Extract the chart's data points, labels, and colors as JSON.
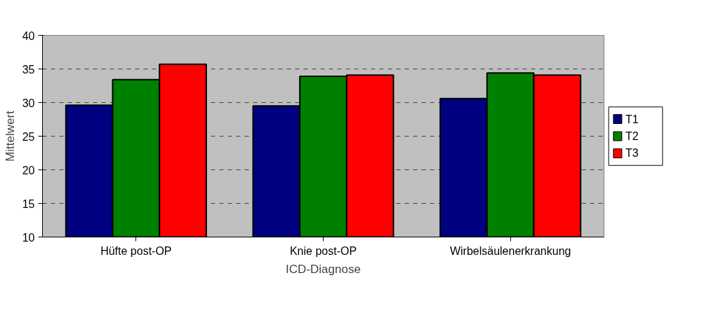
{
  "chart_data": {
    "type": "bar",
    "xlabel": "ICD-Diagnose",
    "ylabel": "Mittelwert",
    "categories": [
      "Hüfte post-OP",
      "Knie post-OP",
      "Wirbelsäulenerkrankung"
    ],
    "series": [
      {
        "name": "T1",
        "color": "#000080",
        "values": [
          29.6,
          29.5,
          30.6
        ]
      },
      {
        "name": "T2",
        "color": "#008000",
        "values": [
          33.4,
          33.9,
          34.4
        ]
      },
      {
        "name": "T3",
        "color": "#ff0000",
        "values": [
          35.7,
          34.1,
          34.1
        ]
      }
    ],
    "ylim": [
      10,
      40
    ],
    "yticks": [
      10,
      15,
      20,
      25,
      30,
      35,
      40
    ],
    "grid": "y",
    "legend": "right"
  }
}
